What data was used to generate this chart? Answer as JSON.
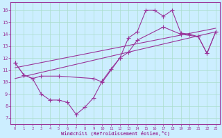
{
  "xlabel": "Windchill (Refroidissement éolien,°C)",
  "background_color": "#cceeff",
  "grid_color": "#aaddcc",
  "line_color": "#993399",
  "x_ticks": [
    0,
    1,
    2,
    3,
    4,
    5,
    6,
    7,
    8,
    9,
    10,
    11,
    12,
    13,
    14,
    15,
    16,
    17,
    18,
    19,
    20,
    21,
    22,
    23
  ],
  "y_ticks": [
    7,
    8,
    9,
    10,
    11,
    12,
    13,
    14,
    15,
    16
  ],
  "xlim": [
    -0.5,
    23.5
  ],
  "ylim": [
    6.5,
    16.7
  ],
  "series1_x": [
    0,
    1,
    2,
    3,
    4,
    5,
    6,
    7,
    8,
    9,
    10,
    11,
    12,
    13,
    14,
    15,
    16,
    17,
    18,
    19,
    20,
    21,
    22,
    23
  ],
  "series1_y": [
    11.6,
    10.6,
    10.3,
    9.0,
    8.5,
    8.5,
    8.3,
    7.3,
    7.9,
    8.7,
    10.1,
    11.1,
    12.0,
    13.7,
    14.2,
    16.0,
    16.0,
    15.5,
    16.0,
    14.1,
    14.0,
    13.8,
    12.4,
    14.2
  ],
  "series2_x": [
    0,
    1,
    2,
    3,
    5,
    9,
    10,
    12,
    13,
    14,
    17,
    19,
    21,
    22,
    23
  ],
  "series2_y": [
    11.6,
    10.6,
    10.3,
    10.5,
    10.5,
    10.3,
    10.0,
    12.0,
    12.5,
    13.5,
    14.6,
    14.0,
    13.8,
    12.4,
    14.2
  ],
  "series3_x": [
    0,
    23
  ],
  "series3_y": [
    10.3,
    14.2
  ],
  "series4_x": [
    0,
    23
  ],
  "series4_y": [
    11.2,
    14.5
  ]
}
